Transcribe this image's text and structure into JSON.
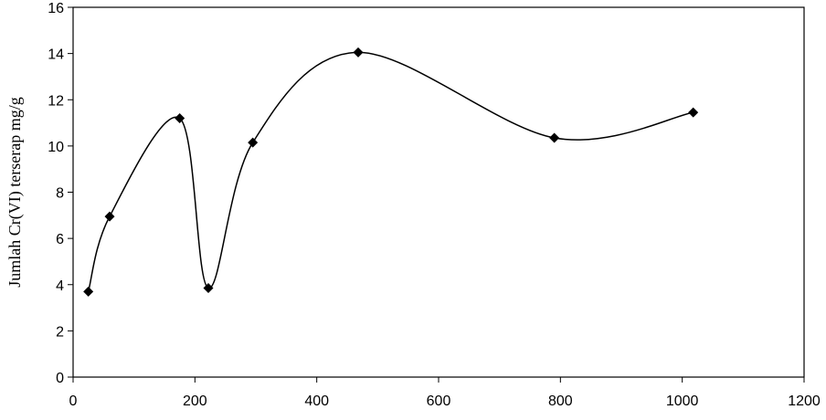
{
  "chart_data": {
    "type": "scatter",
    "title": "",
    "xlabel": "",
    "ylabel": "Jumlah Cr(VI) terserap mg/g",
    "xlim": [
      0,
      1200
    ],
    "ylim": [
      0,
      16
    ],
    "xticks": [
      0,
      200,
      400,
      600,
      800,
      1000,
      1200
    ],
    "yticks": [
      0,
      2,
      4,
      6,
      8,
      10,
      12,
      14,
      16
    ],
    "grid": false,
    "legend": "none",
    "line_style": "smooth",
    "marker": "diamond",
    "color": "#000000",
    "series": [
      {
        "x": [
          25,
          60,
          175,
          222,
          295,
          468,
          790,
          1018
        ],
        "y": [
          3.7,
          6.95,
          11.2,
          3.85,
          10.15,
          14.05,
          10.35,
          11.45
        ]
      }
    ]
  }
}
